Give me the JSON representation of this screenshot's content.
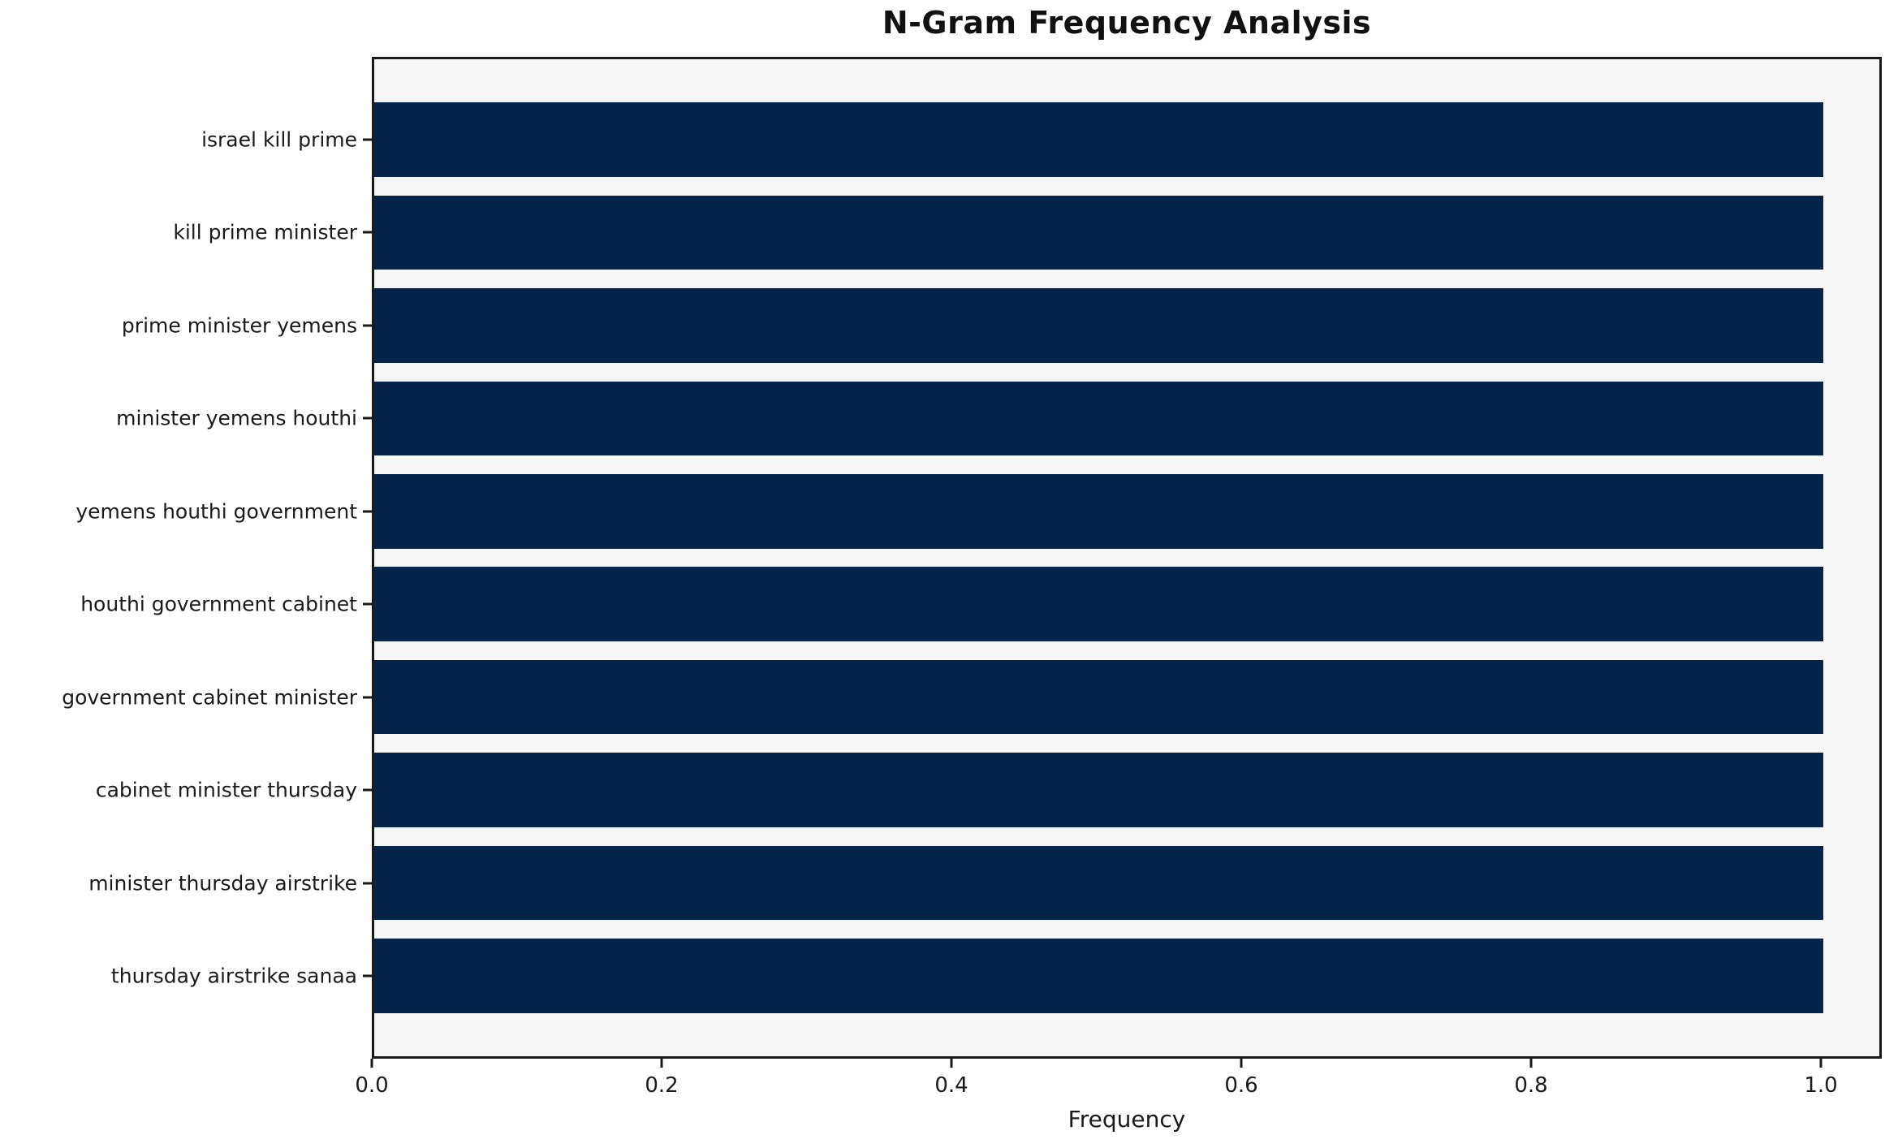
{
  "chart_data": {
    "type": "bar",
    "orientation": "horizontal",
    "title": "N-Gram Frequency Analysis",
    "xlabel": "Frequency",
    "ylabel": "",
    "categories": [
      "israel kill prime",
      "kill prime minister",
      "prime minister yemens",
      "minister yemens houthi",
      "yemens houthi government",
      "houthi government cabinet",
      "government cabinet minister",
      "cabinet minister thursday",
      "minister thursday airstrike",
      "thursday airstrike sanaa"
    ],
    "values": [
      1.0,
      1.0,
      1.0,
      1.0,
      1.0,
      1.0,
      1.0,
      1.0,
      1.0,
      1.0
    ],
    "xticks": [
      0.0,
      0.2,
      0.4,
      0.6,
      0.8,
      1.0
    ],
    "xtick_labels": [
      "0.0",
      "0.2",
      "0.4",
      "0.6",
      "0.8",
      "1.0"
    ],
    "xlim": [
      0,
      1.042
    ],
    "grid": false,
    "legend": null,
    "colors": {
      "bar": "#062349",
      "plot_background": "#f6f6f7",
      "figure_background": "#ffffff",
      "spine": "#1a1a1a",
      "text": "#1a1a1a"
    }
  }
}
